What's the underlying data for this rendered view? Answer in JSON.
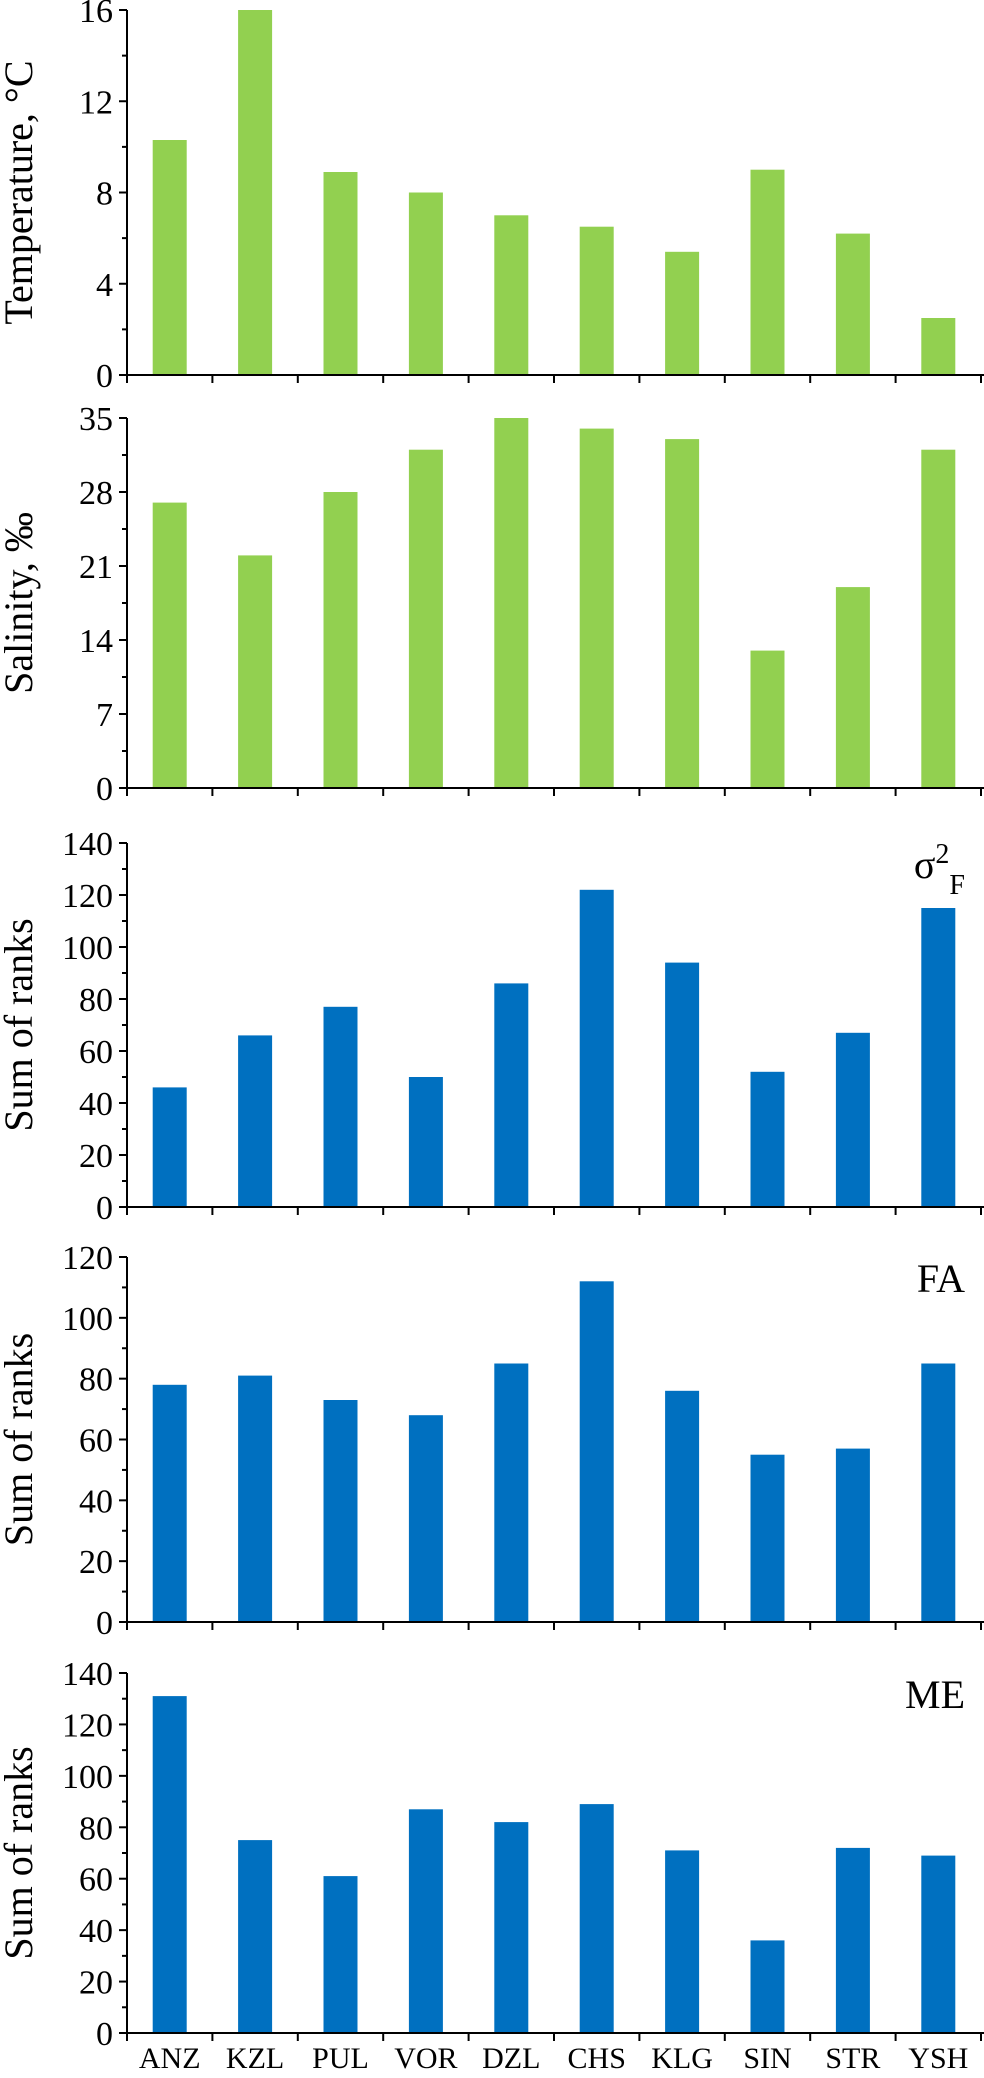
{
  "colors": {
    "green": "#92D050",
    "blue": "#0070C0",
    "axis": "#000000"
  },
  "chart_data": [
    {
      "type": "bar",
      "categories": [
        "ANZ",
        "KZL",
        "PUL",
        "VOR",
        "DZL",
        "CHS",
        "KLG",
        "SIN",
        "STR",
        "YSH"
      ],
      "values": [
        10.3,
        16,
        8.9,
        8,
        7,
        6.5,
        5.4,
        9,
        6.2,
        2.5
      ],
      "ylabel": "Temperature, °C",
      "ylim": [
        0,
        16
      ],
      "yticks": [
        "0",
        "4",
        "8",
        "12",
        "16"
      ],
      "annotation": "",
      "color": "#92D050",
      "grid": false
    },
    {
      "type": "bar",
      "categories": [
        "ANZ",
        "KZL",
        "PUL",
        "VOR",
        "DZL",
        "CHS",
        "KLG",
        "SIN",
        "STR",
        "YSH"
      ],
      "values": [
        27,
        22,
        28,
        32,
        35,
        34,
        33,
        13,
        19,
        32
      ],
      "ylabel": "Salinity, ‰",
      "ylim": [
        0,
        35
      ],
      "yticks": [
        "0",
        "7",
        "14",
        "21",
        "28",
        "35"
      ],
      "annotation": "",
      "color": "#92D050",
      "grid": false
    },
    {
      "type": "bar",
      "categories": [
        "ANZ",
        "KZL",
        "PUL",
        "VOR",
        "DZL",
        "CHS",
        "KLG",
        "SIN",
        "STR",
        "YSH"
      ],
      "values": [
        46,
        66,
        77,
        50,
        86,
        122,
        94,
        52,
        67,
        115
      ],
      "ylabel": "Sum of ranks",
      "ylim": [
        0,
        140
      ],
      "yticks": [
        "0",
        "20",
        "40",
        "60",
        "80",
        "100",
        "120",
        "140"
      ],
      "annotation": "σ²F",
      "color": "#0070C0",
      "grid": false
    },
    {
      "type": "bar",
      "categories": [
        "ANZ",
        "KZL",
        "PUL",
        "VOR",
        "DZL",
        "CHS",
        "KLG",
        "SIN",
        "STR",
        "YSH"
      ],
      "values": [
        78,
        81,
        73,
        68,
        85,
        112,
        76,
        55,
        57,
        85
      ],
      "ylabel": "Sum of ranks",
      "ylim": [
        0,
        120
      ],
      "yticks": [
        "0",
        "20",
        "40",
        "60",
        "80",
        "100",
        "120"
      ],
      "annotation": "FA",
      "color": "#0070C0",
      "grid": false
    },
    {
      "type": "bar",
      "categories": [
        "ANZ",
        "KZL",
        "PUL",
        "VOR",
        "DZL",
        "CHS",
        "KLG",
        "SIN",
        "STR",
        "YSH"
      ],
      "values": [
        131,
        75,
        61,
        87,
        82,
        89,
        71,
        36,
        72,
        69
      ],
      "ylabel": "Sum of ranks",
      "ylim": [
        0,
        140
      ],
      "yticks": [
        "0",
        "20",
        "40",
        "60",
        "80",
        "100",
        "120",
        "140"
      ],
      "annotation": "ME",
      "color": "#0070C0",
      "grid": false,
      "show_category_labels": true
    }
  ]
}
